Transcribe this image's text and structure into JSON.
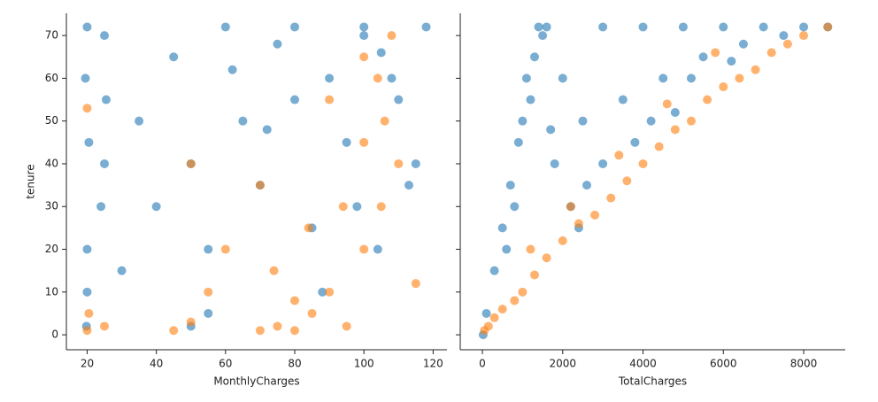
{
  "chart_data": [
    {
      "type": "scatter",
      "xlabel": "MonthlyCharges",
      "ylabel": "tenure",
      "xlim": [
        14,
        124
      ],
      "ylim": [
        -3.5,
        75.2
      ],
      "xticks": [
        20,
        40,
        60,
        80,
        100,
        120
      ],
      "yticks": [
        0,
        10,
        20,
        30,
        40,
        50,
        60,
        70
      ],
      "series": [
        {
          "color": "#1f77b4",
          "x": [
            20,
            19.5,
            20.5,
            25,
            24,
            20,
            19.8,
            25.5,
            45,
            50,
            55,
            60,
            65,
            70,
            75,
            80,
            85,
            90,
            95,
            100,
            105,
            110,
            115,
            118,
            30,
            35,
            40,
            55,
            62,
            72,
            88,
            98,
            108,
            113,
            20,
            25,
            50,
            80,
            100,
            104
          ],
          "values": [
            72,
            60,
            45,
            70,
            30,
            10,
            2,
            55,
            65,
            40,
            20,
            72,
            50,
            35,
            68,
            72,
            25,
            60,
            45,
            72,
            66,
            55,
            40,
            72,
            15,
            50,
            30,
            5,
            62,
            48,
            10,
            30,
            60,
            35,
            20,
            40,
            2,
            55,
            70,
            20
          ]
        },
        {
          "color": "#ff7f0e",
          "x": [
            20,
            20.5,
            25,
            45,
            50,
            55,
            70,
            75,
            80,
            85,
            90,
            95,
            100,
            105,
            110,
            74,
            84,
            94,
            100,
            104,
            108,
            50,
            60,
            70,
            80,
            90,
            100,
            106,
            115,
            20
          ],
          "values": [
            1,
            5,
            2,
            1,
            3,
            10,
            1,
            2,
            1,
            5,
            10,
            2,
            20,
            30,
            40,
            15,
            25,
            30,
            45,
            60,
            70,
            40,
            20,
            35,
            8,
            55,
            65,
            50,
            12,
            53
          ]
        }
      ]
    },
    {
      "type": "scatter",
      "xlabel": "TotalCharges",
      "xlim": [
        -551,
        9035
      ],
      "ylim": [
        -3.5,
        75.2
      ],
      "xticks": [
        0,
        2000,
        4000,
        6000,
        8000
      ],
      "yticks": [
        0,
        10,
        20,
        30,
        40,
        50,
        60,
        70
      ],
      "series": [
        {
          "color": "#1f77b4",
          "x": [
            1400,
            1500,
            1300,
            1600,
            2000,
            3000,
            4000,
            5000,
            6000,
            7000,
            8000,
            8600,
            1200,
            900,
            700,
            500,
            300,
            100,
            20,
            2500,
            3500,
            4500,
            5500,
            6500,
            7500,
            1800,
            2200,
            1000,
            800,
            600,
            3000,
            4200,
            5200,
            6200,
            1100,
            1700,
            2600,
            3800,
            4800,
            2400
          ],
          "values": [
            72,
            70,
            65,
            72,
            60,
            72,
            72,
            72,
            72,
            72,
            72,
            72,
            55,
            45,
            35,
            25,
            15,
            5,
            0,
            50,
            55,
            60,
            65,
            68,
            70,
            40,
            30,
            50,
            30,
            20,
            40,
            50,
            60,
            64,
            60,
            48,
            35,
            45,
            52,
            25
          ]
        },
        {
          "color": "#ff7f0e",
          "x": [
            50,
            150,
            300,
            500,
            800,
            1000,
            1300,
            1600,
            2000,
            2400,
            2800,
            3200,
            3600,
            4000,
            4400,
            4800,
            5200,
            5600,
            6000,
            6400,
            6800,
            7200,
            7600,
            8000,
            8600,
            1200,
            2200,
            3400,
            4600,
            5800
          ],
          "values": [
            1,
            2,
            4,
            6,
            8,
            10,
            14,
            18,
            22,
            26,
            28,
            32,
            36,
            40,
            44,
            48,
            50,
            55,
            58,
            60,
            62,
            66,
            68,
            70,
            72,
            20,
            30,
            42,
            54,
            66
          ]
        }
      ]
    }
  ]
}
